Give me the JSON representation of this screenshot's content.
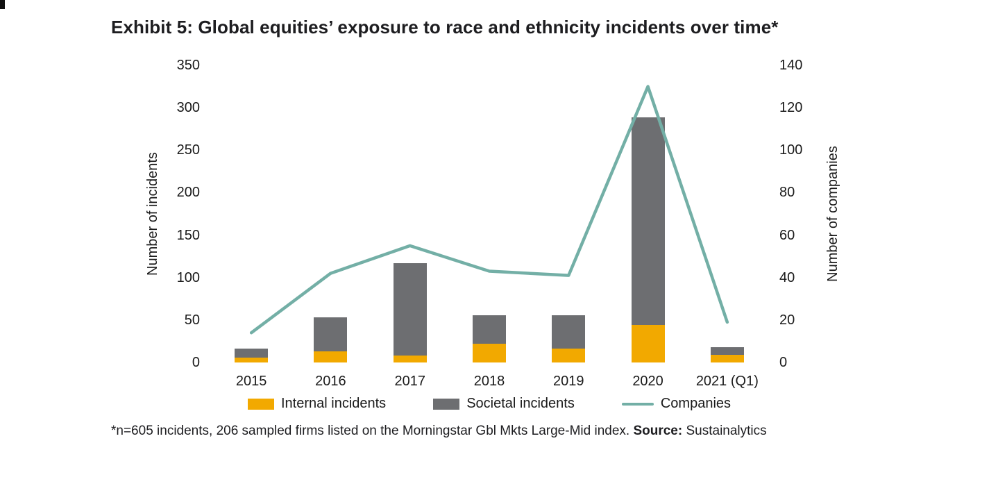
{
  "page": {
    "title": "Exhibit 5: Global equities’ exposure to race and ethnicity incidents over time*",
    "footnote_text": "*n=605 incidents, 206 sampled firms listed on the Morningstar Gbl Mkts Large-Mid index.",
    "footnote_source_label": "Source:",
    "footnote_source": "Sustainalytics"
  },
  "chart_data": {
    "type": "bar",
    "subtype": "stacked-bars-with-line",
    "title": "Exhibit 5: Global equities’ exposure to race and ethnicity incidents over time*",
    "categories": [
      "2015",
      "2016",
      "2017",
      "2018",
      "2019",
      "2020",
      "2021 (Q1)"
    ],
    "series": [
      {
        "name": "Internal incidents",
        "type": "bar",
        "stack": "incidents",
        "axis": "left",
        "color": "#F2A900",
        "values": [
          6,
          13,
          8,
          22,
          16,
          44,
          9
        ]
      },
      {
        "name": "Societal incidents",
        "type": "bar",
        "stack": "incidents",
        "axis": "left",
        "color": "#6D6E71",
        "values": [
          10,
          40,
          109,
          34,
          40,
          245,
          9
        ]
      },
      {
        "name": "Companies",
        "type": "line",
        "axis": "right",
        "color": "#73AFA6",
        "values": [
          14,
          42,
          55,
          43,
          41,
          130,
          19
        ]
      }
    ],
    "left_axis": {
      "label": "Number of incidents",
      "min": 0,
      "max": 350,
      "ticks": [
        0,
        50,
        100,
        150,
        200,
        250,
        300,
        350
      ]
    },
    "right_axis": {
      "label": "Number of companies",
      "min": 0,
      "max": 140,
      "ticks": [
        0,
        20,
        40,
        60,
        80,
        100,
        120,
        140
      ]
    },
    "legend": [
      {
        "label": "Internal incidents",
        "swatch": "bar",
        "color": "#F2A900"
      },
      {
        "label": "Societal incidents",
        "swatch": "bar",
        "color": "#6D6E71"
      },
      {
        "label": "Companies",
        "swatch": "line",
        "color": "#73AFA6"
      }
    ],
    "grid": false,
    "legend_position": "bottom"
  }
}
